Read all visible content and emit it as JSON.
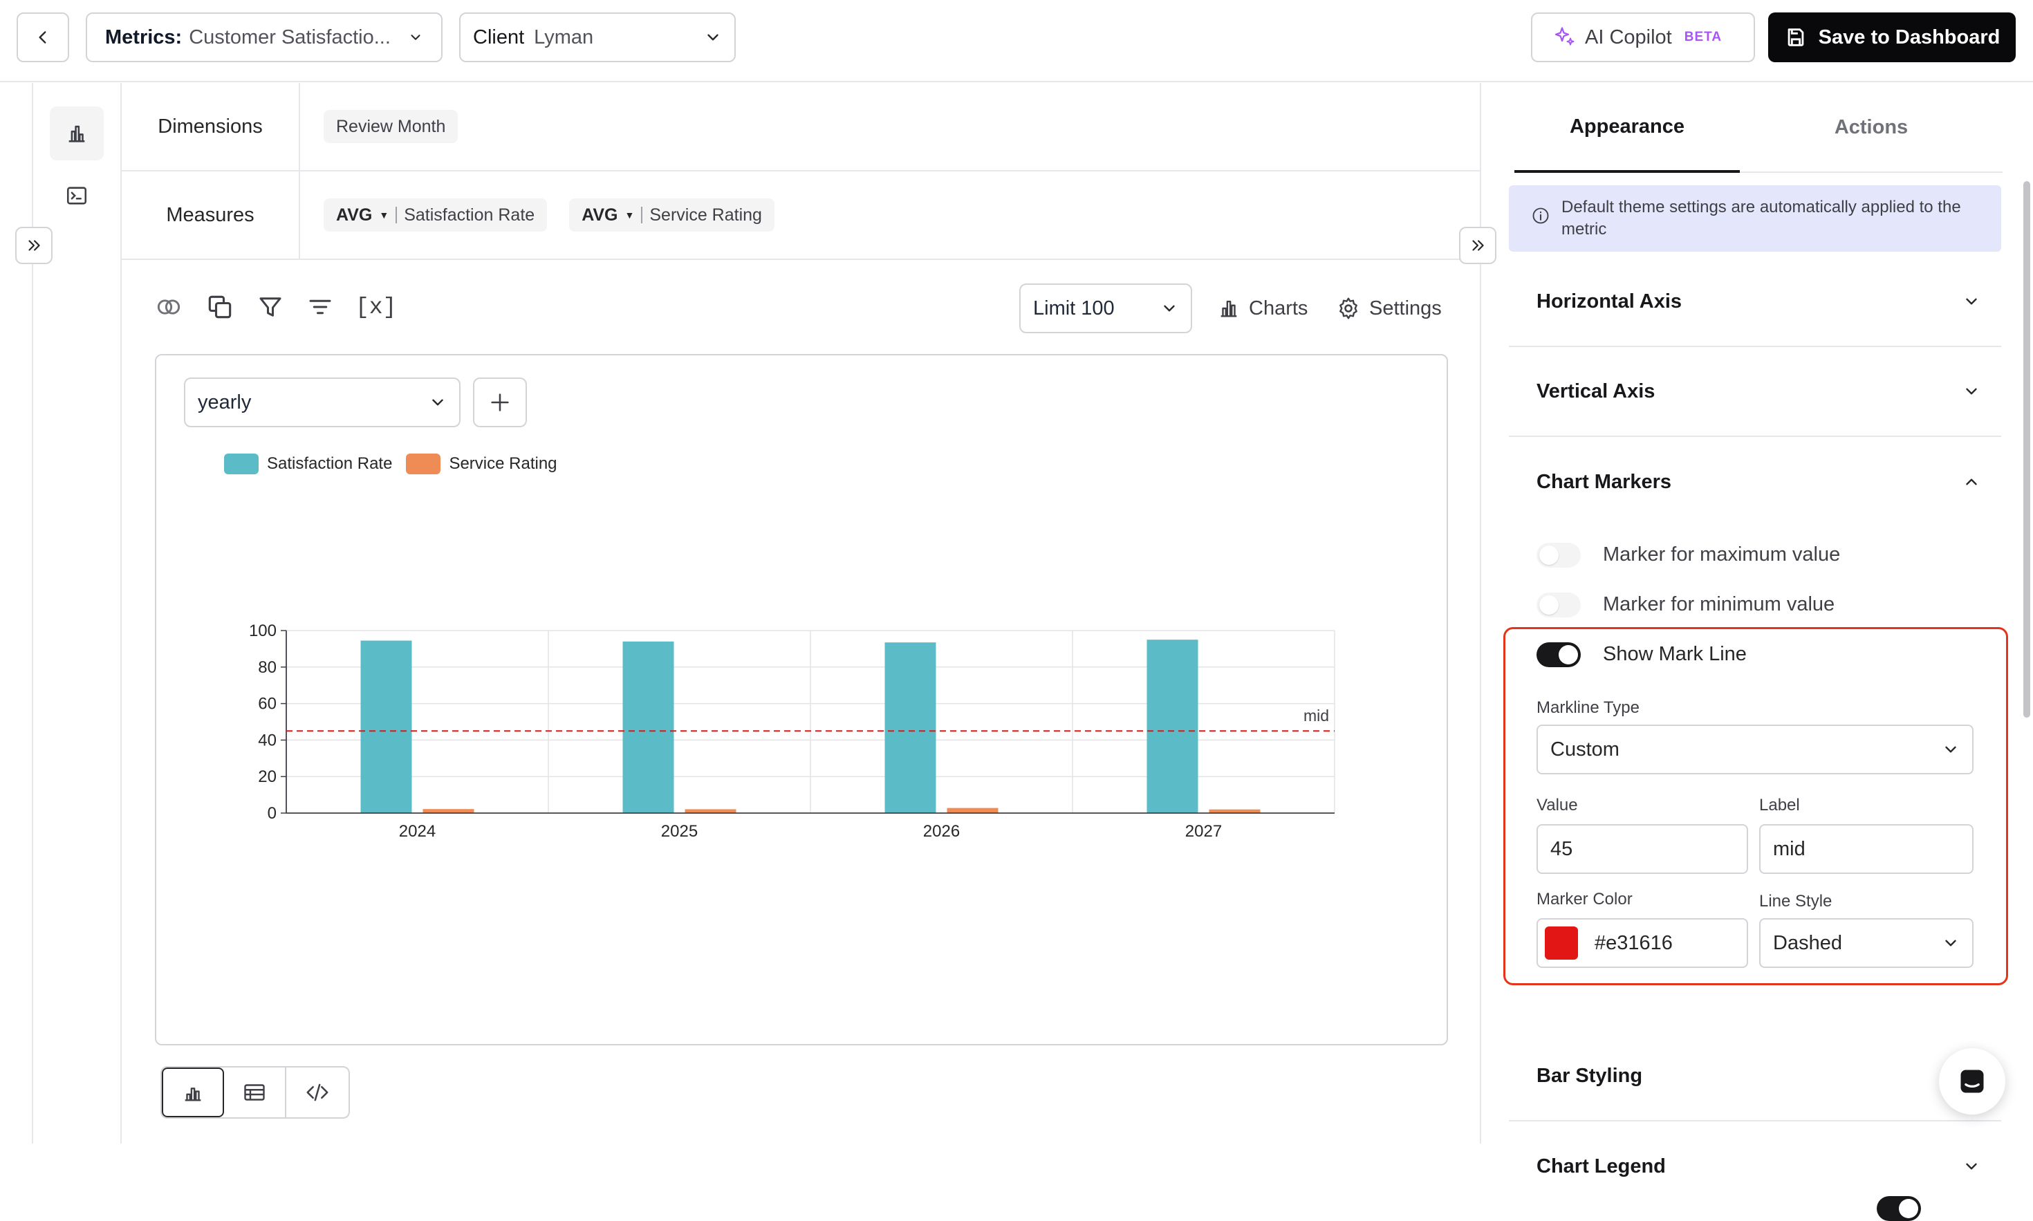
{
  "topbar": {
    "metric_prefix": "Metrics:",
    "metric_value": "Customer Satisfactio...",
    "client_prefix": "Client",
    "client_value": "Lyman",
    "copilot_label": "AI Copilot",
    "copilot_badge": "BETA",
    "save_label": "Save to Dashboard"
  },
  "query": {
    "dimensions_label": "Dimensions",
    "dimension_chip": "Review Month",
    "measures_label": "Measures",
    "measures": [
      {
        "agg": "AVG",
        "field": "Satisfaction Rate"
      },
      {
        "agg": "AVG",
        "field": "Service Rating"
      }
    ]
  },
  "toolbar": {
    "limit_label": "Limit 100",
    "charts_label": "Charts",
    "settings_label": "Settings",
    "variables_label": "[x]"
  },
  "card": {
    "period_value": "yearly"
  },
  "chart_data": {
    "type": "bar",
    "categories": [
      "2024",
      "2025",
      "2026",
      "2027"
    ],
    "series": [
      {
        "name": "Satisfaction Rate",
        "color": "#5bbcc7",
        "values": [
          94.5,
          94,
          93.5,
          95
        ]
      },
      {
        "name": "Service Rating",
        "color": "#ef8c55",
        "values": [
          2.2,
          2.1,
          2.8,
          2
        ]
      }
    ],
    "ylim": [
      0,
      100
    ],
    "yticks": [
      0,
      20,
      40,
      60,
      80,
      100
    ],
    "markline": {
      "value": 45,
      "label": "mid",
      "color": "#e31616",
      "style": "dashed"
    },
    "grid": true,
    "legend": "top-left",
    "title": "",
    "xlabel": "",
    "ylabel": ""
  },
  "panel": {
    "tabs": [
      "Appearance",
      "Actions"
    ],
    "info": "Default theme settings are automatically applied to the metric",
    "sections": {
      "horizontal_axis": "Horizontal Axis",
      "vertical_axis": "Vertical Axis",
      "chart_markers": "Chart Markers",
      "bar_styling": "Bar Styling",
      "chart_legend": "Chart Legend"
    },
    "markers": {
      "max_label": "Marker for maximum value",
      "min_label": "Marker for minimum value",
      "show_markline_label": "Show Mark Line",
      "max_on": false,
      "min_on": false,
      "markline_on": true,
      "legend_on": true
    },
    "markline": {
      "type_label": "Markline Type",
      "type_value": "Custom",
      "value_label": "Value",
      "value": "45",
      "label_label": "Label",
      "label_value": "mid",
      "color_label": "Marker Color",
      "color_value": "#e31616",
      "style_label": "Line Style",
      "style_value": "Dashed"
    }
  },
  "colors": {
    "accent": "#09090b",
    "highlight": "#e5341d",
    "copilot": "#a855f7",
    "info_bg": "#e4e6fc"
  }
}
